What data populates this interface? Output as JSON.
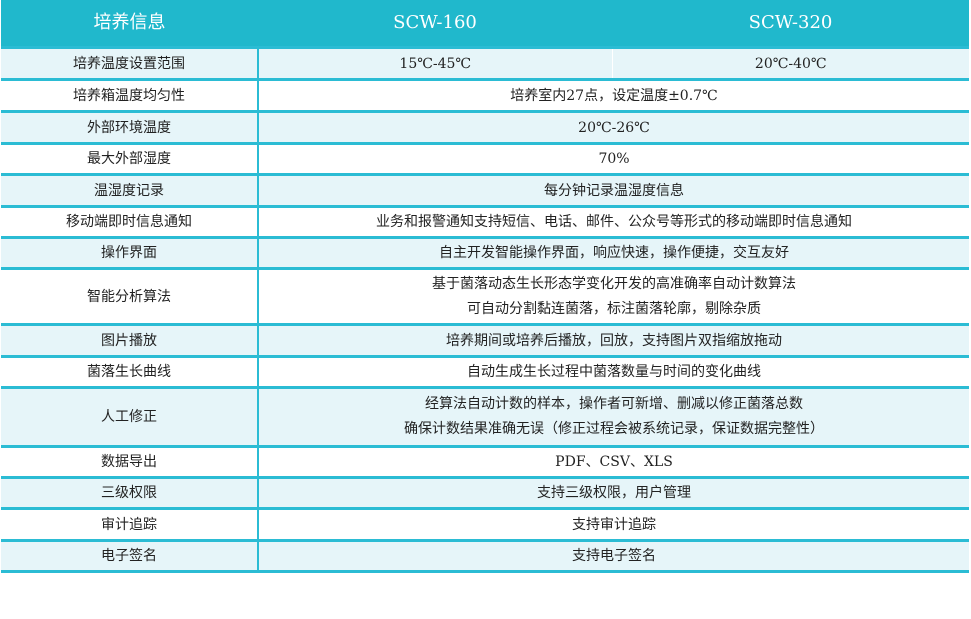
{
  "header": {
    "label": "培养信息",
    "models": [
      "SCW-160",
      "SCW-320"
    ]
  },
  "colors": {
    "header": "#20b8cc",
    "border": "#2bbcd4",
    "row_alt": "#e6f5f9"
  },
  "rows": [
    {
      "label": "培养温度设置范围",
      "values": [
        "15℃-45℃",
        "20℃-40℃"
      ]
    },
    {
      "label": "培养箱温度均匀性",
      "lines": [
        "培养室内27点，设定温度±0.7℃"
      ]
    },
    {
      "label": "外部环境温度",
      "lines": [
        "20℃-26℃"
      ]
    },
    {
      "label": "最大外部湿度",
      "lines": [
        "70%"
      ]
    },
    {
      "label": "温湿度记录",
      "lines": [
        "每分钟记录温湿度信息"
      ]
    },
    {
      "label": "移动端即时信息通知",
      "lines": [
        "业务和报警通知支持短信、电话、邮件、公众号等形式的移动端即时信息通知"
      ]
    },
    {
      "label": "操作界面",
      "lines": [
        "自主开发智能操作界面，响应快速，操作便捷，交互友好"
      ]
    },
    {
      "label": "智能分析算法",
      "lines": [
        "基于菌落动态生长形态学变化开发的高准确率自动计数算法",
        "可自动分割黏连菌落，标注菌落轮廓，剔除杂质"
      ]
    },
    {
      "label": "图片播放",
      "lines": [
        "培养期间或培养后播放，回放，支持图片双指缩放拖动"
      ]
    },
    {
      "label": "菌落生长曲线",
      "lines": [
        "自动生成生长过程中菌落数量与时间的变化曲线"
      ]
    },
    {
      "label": "人工修正",
      "lines": [
        "经算法自动计数的样本，操作者可新增、删减以修正菌落总数",
        "确保计数结果准确无误（修正过程会被系统记录，保证数据完整性）"
      ]
    },
    {
      "label": "数据导出",
      "lines": [
        "PDF、CSV、XLS"
      ]
    },
    {
      "label": "三级权限",
      "lines": [
        "支持三级权限，用户管理"
      ]
    },
    {
      "label": "审计追踪",
      "lines": [
        "支持审计追踪"
      ]
    },
    {
      "label": "电子签名",
      "lines": [
        "支持电子签名"
      ]
    }
  ]
}
